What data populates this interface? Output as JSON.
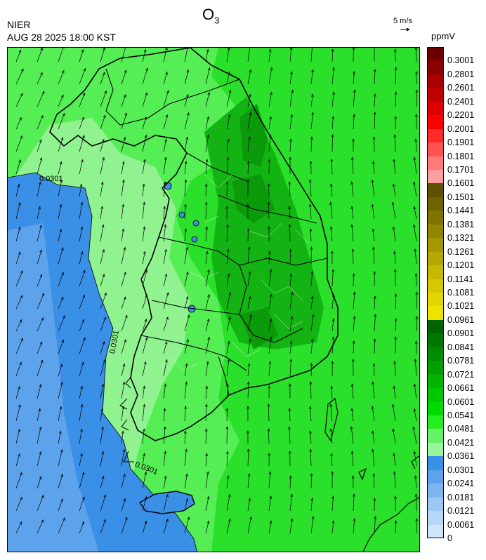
{
  "title": {
    "main": "O",
    "sub": "3"
  },
  "header": {
    "org": "NIER",
    "timestamp": "AUG 28 2025 18:00 KST"
  },
  "wind_reference": {
    "speed_label": "5 m/s"
  },
  "legend": {
    "unit": "ppmV",
    "bins": [
      {
        "label": "0.3001",
        "color": "#6b0000"
      },
      {
        "label": "0.2801",
        "color": "#8b0000"
      },
      {
        "label": "0.2601",
        "color": "#a80000"
      },
      {
        "label": "0.2401",
        "color": "#c00000"
      },
      {
        "label": "0.2201",
        "color": "#dc0000"
      },
      {
        "label": "0.2001",
        "color": "#ff0000"
      },
      {
        "label": "0.1901",
        "color": "#ff2a2a"
      },
      {
        "label": "0.1801",
        "color": "#ff5252"
      },
      {
        "label": "0.1701",
        "color": "#ff7a7a"
      },
      {
        "label": "0.1601",
        "color": "#ff9e9e"
      },
      {
        "label": "0.1501",
        "color": "#5c5200"
      },
      {
        "label": "0.1441",
        "color": "#6e6300"
      },
      {
        "label": "0.1381",
        "color": "#7f7400"
      },
      {
        "label": "0.1321",
        "color": "#928500"
      },
      {
        "label": "0.1261",
        "color": "#a59700"
      },
      {
        "label": "0.1201",
        "color": "#b6a800"
      },
      {
        "label": "0.1141",
        "color": "#c7b800"
      },
      {
        "label": "0.1081",
        "color": "#d6c800"
      },
      {
        "label": "0.1021",
        "color": "#e3d600"
      },
      {
        "label": "0.0961",
        "color": "#efe400"
      },
      {
        "label": "0.0901",
        "color": "#006400"
      },
      {
        "label": "0.0841",
        "color": "#007800"
      },
      {
        "label": "0.0781",
        "color": "#008c00"
      },
      {
        "label": "0.0721",
        "color": "#00a000"
      },
      {
        "label": "0.0661",
        "color": "#00b400"
      },
      {
        "label": "0.0601",
        "color": "#00c800"
      },
      {
        "label": "0.0541",
        "color": "#00dc00"
      },
      {
        "label": "0.0481",
        "color": "#22ee22"
      },
      {
        "label": "0.0421",
        "color": "#66f266"
      },
      {
        "label": "0.0361",
        "color": "#99f599"
      },
      {
        "label": "0.0301",
        "color": "#3a8fe6"
      },
      {
        "label": "0.0241",
        "color": "#5ca3ec"
      },
      {
        "label": "0.0181",
        "color": "#7db5ef"
      },
      {
        "label": "0.0121",
        "color": "#9cc8f3"
      },
      {
        "label": "0.0061",
        "color": "#b6d8f6"
      },
      {
        "label": "0",
        "color": "#cfe5f9"
      }
    ]
  },
  "map": {
    "contour_labels": [
      "0.0301",
      "0.0301",
      "0.0301"
    ],
    "wind_direction": "south-westerly to southerly",
    "region": "Korean Peninsula"
  }
}
